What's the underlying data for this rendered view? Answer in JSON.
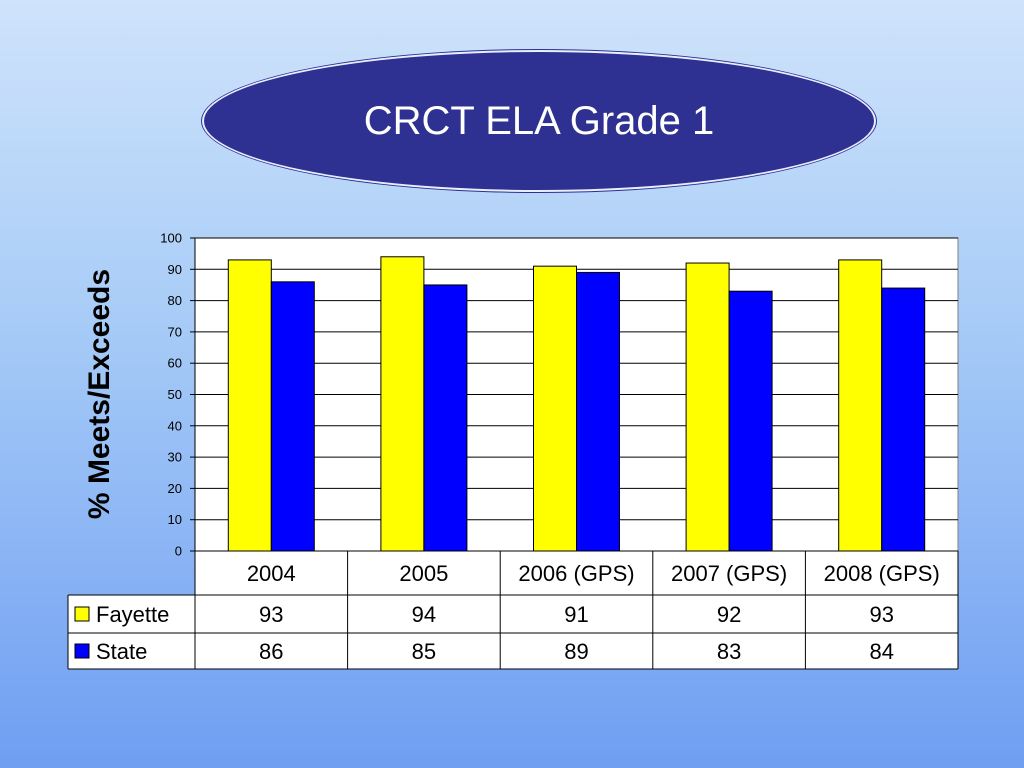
{
  "slide": {
    "title": "CRCT ELA Grade 1"
  },
  "chart_data": {
    "type": "bar",
    "title": "CRCT ELA Grade 1",
    "xlabel": "",
    "ylabel": "% Meets/Exceeds",
    "ylim": [
      0,
      100
    ],
    "yticks": [
      0,
      10,
      20,
      30,
      40,
      50,
      60,
      70,
      80,
      90,
      100
    ],
    "grid": true,
    "legend": "data-table-left",
    "categories": [
      "2004",
      "2005",
      "2006 (GPS)",
      "2007 (GPS)",
      "2008 (GPS)"
    ],
    "series": [
      {
        "name": "Fayette",
        "color": "#ffff00",
        "values": [
          93,
          94,
          91,
          92,
          93
        ]
      },
      {
        "name": "State",
        "color": "#0000ff",
        "values": [
          86,
          85,
          89,
          83,
          84
        ]
      }
    ]
  }
}
